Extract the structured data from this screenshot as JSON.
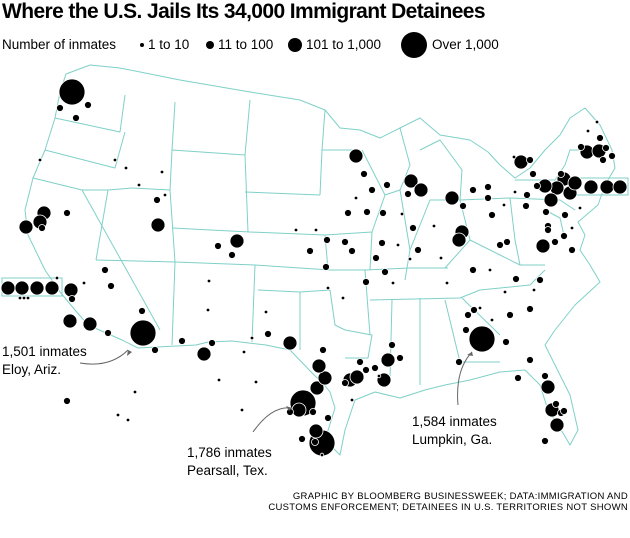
{
  "title": "Where the U.S. Jails Its 34,000 Immigrant Detainees",
  "legend": {
    "heading": "Number of inmates",
    "items": [
      {
        "label": "1 to 10"
      },
      {
        "label": "11 to 100"
      },
      {
        "label": "101 to 1,000"
      },
      {
        "label": "Over 1,000"
      }
    ]
  },
  "annotations": {
    "eloy": {
      "line1": "1,501 inmates",
      "line2": "Eloy, Ariz."
    },
    "pearsall": {
      "line1": "1,786 inmates",
      "line2": "Pearsall, Tex."
    },
    "lumpkin": {
      "line1": "1,584 inmates",
      "line2": "Lumpkin, Ga."
    }
  },
  "credit": {
    "line1": "GRAPHIC BY BLOOMBERG BUSINESSWEEK; DATA:IMMIGRATION AND",
    "line2": "CUSTOMS ENFORCEMENT; DETAINEES IN U.S. TERRITORIES NOT SHOWN"
  },
  "colors": {
    "border": "#7fd0c8",
    "dot": "#000000",
    "outline": "#ffffff"
  }
}
